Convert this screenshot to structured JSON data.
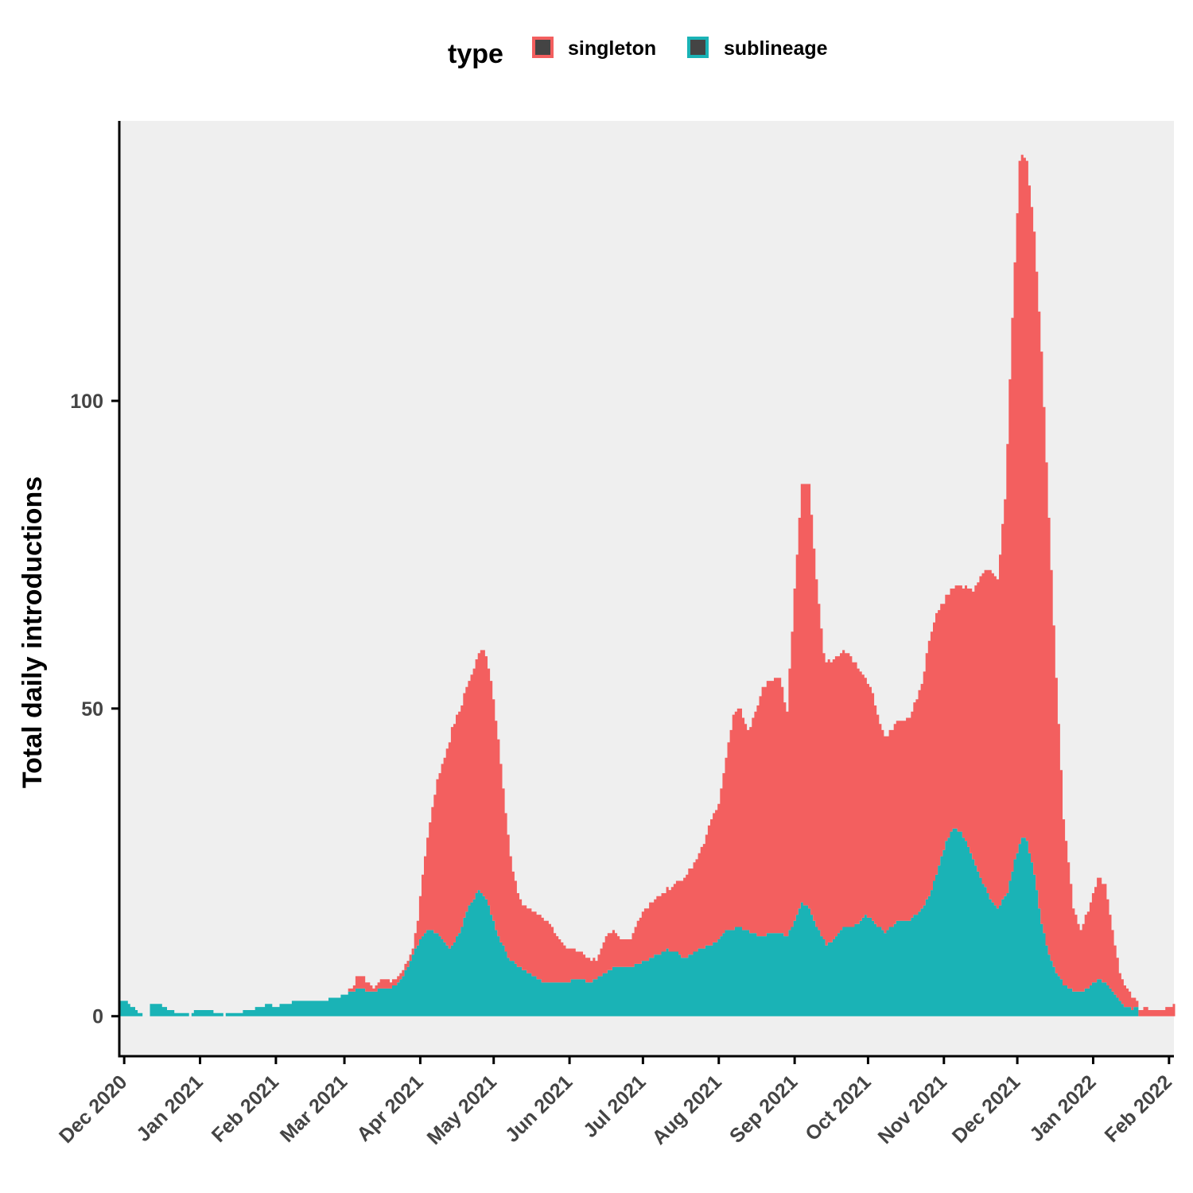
{
  "chart_data": {
    "type": "area",
    "stacked": true,
    "title": "",
    "xlabel": "",
    "ylabel": "Total daily introductions",
    "xlim": [
      "2020-11-29",
      "2022-02-03"
    ],
    "ylim": [
      -6.5,
      145.5
    ],
    "y_ticks": [
      0,
      50,
      100
    ],
    "x_ticks": [
      {
        "date": "2020-12-01",
        "label": "Dec 2020"
      },
      {
        "date": "2021-01-01",
        "label": "Jan 2021"
      },
      {
        "date": "2021-02-01",
        "label": "Feb 2021"
      },
      {
        "date": "2021-03-01",
        "label": "Mar 2021"
      },
      {
        "date": "2021-04-01",
        "label": "Apr 2021"
      },
      {
        "date": "2021-05-01",
        "label": "May 2021"
      },
      {
        "date": "2021-06-01",
        "label": "Jun 2021"
      },
      {
        "date": "2021-07-01",
        "label": "Jul 2021"
      },
      {
        "date": "2021-08-01",
        "label": "Aug 2021"
      },
      {
        "date": "2021-09-01",
        "label": "Sep 2021"
      },
      {
        "date": "2021-10-01",
        "label": "Oct 2021"
      },
      {
        "date": "2021-11-01",
        "label": "Nov 2021"
      },
      {
        "date": "2021-12-01",
        "label": "Dec 2021"
      },
      {
        "date": "2022-01-01",
        "label": "Jan 2022"
      },
      {
        "date": "2022-02-01",
        "label": "Feb 2022"
      }
    ],
    "grid": false,
    "legend": {
      "title": "type",
      "position": "top"
    },
    "series": [
      {
        "name": "sublineage",
        "color": "#1AB3B6",
        "points": [
          [
            "2020-11-29",
            2.3
          ],
          [
            "2020-12-02",
            2.3
          ],
          [
            "2020-12-06",
            1.0
          ],
          [
            "2020-12-09",
            0.2
          ],
          [
            "2020-12-11",
            0.2
          ],
          [
            "2020-12-12",
            2.1
          ],
          [
            "2020-12-16",
            1.9
          ],
          [
            "2020-12-20",
            1.0
          ],
          [
            "2020-12-24",
            0.4
          ],
          [
            "2020-12-28",
            0.2
          ],
          [
            "2020-12-31",
            1.1
          ],
          [
            "2021-01-04",
            1.1
          ],
          [
            "2021-01-08",
            0.5
          ],
          [
            "2021-01-11",
            0.2
          ],
          [
            "2021-01-16",
            0.5
          ],
          [
            "2021-01-22",
            1.1
          ],
          [
            "2021-01-28",
            1.8
          ],
          [
            "2021-02-02",
            1.7
          ],
          [
            "2021-02-06",
            1.9
          ],
          [
            "2021-02-08",
            2.3
          ],
          [
            "2021-02-15",
            2.4
          ],
          [
            "2021-02-22",
            2.7
          ],
          [
            "2021-03-01",
            3.4
          ],
          [
            "2021-03-06",
            4.3
          ],
          [
            "2021-03-13",
            4.2
          ],
          [
            "2021-03-18",
            4.4
          ],
          [
            "2021-03-22",
            5.0
          ],
          [
            "2021-03-25",
            6.5
          ],
          [
            "2021-03-28",
            9.0
          ],
          [
            "2021-04-01",
            12.5
          ],
          [
            "2021-04-05",
            14.2
          ],
          [
            "2021-04-09",
            13.0
          ],
          [
            "2021-04-13",
            10.8
          ],
          [
            "2021-04-17",
            13.5
          ],
          [
            "2021-04-21",
            18.0
          ],
          [
            "2021-04-25",
            20.4
          ],
          [
            "2021-04-28",
            19.0
          ],
          [
            "2021-05-02",
            14.0
          ],
          [
            "2021-05-07",
            9.5
          ],
          [
            "2021-05-13",
            7.5
          ],
          [
            "2021-05-18",
            6.5
          ],
          [
            "2021-05-22",
            5.3
          ],
          [
            "2021-05-30",
            5.5
          ],
          [
            "2021-06-05",
            6.0
          ],
          [
            "2021-06-10",
            5.5
          ],
          [
            "2021-06-15",
            7.0
          ],
          [
            "2021-06-20",
            8.0
          ],
          [
            "2021-06-26",
            8.0
          ],
          [
            "2021-07-01",
            8.8
          ],
          [
            "2021-07-06",
            9.8
          ],
          [
            "2021-07-11",
            10.8
          ],
          [
            "2021-07-14",
            10.6
          ],
          [
            "2021-07-18",
            9.3
          ],
          [
            "2021-07-24",
            10.9
          ],
          [
            "2021-07-29",
            11.5
          ],
          [
            "2021-08-01",
            12.6
          ],
          [
            "2021-08-04",
            14.0
          ],
          [
            "2021-08-09",
            14.4
          ],
          [
            "2021-08-15",
            13.5
          ],
          [
            "2021-08-18",
            12.8
          ],
          [
            "2021-08-22",
            13.5
          ],
          [
            "2021-08-26",
            13.6
          ],
          [
            "2021-08-29",
            12.9
          ],
          [
            "2021-09-01",
            15.5
          ],
          [
            "2021-09-04",
            18.3
          ],
          [
            "2021-09-07",
            17.5
          ],
          [
            "2021-09-10",
            14.5
          ],
          [
            "2021-09-14",
            11.5
          ],
          [
            "2021-09-17",
            12.5
          ],
          [
            "2021-09-20",
            14.2
          ],
          [
            "2021-09-25",
            14.5
          ],
          [
            "2021-09-30",
            16.3
          ],
          [
            "2021-10-03",
            15.5
          ],
          [
            "2021-10-08",
            13.5
          ],
          [
            "2021-10-13",
            15.5
          ],
          [
            "2021-10-18",
            15.7
          ],
          [
            "2021-10-22",
            16.8
          ],
          [
            "2021-10-26",
            19.5
          ],
          [
            "2021-10-29",
            23.0
          ],
          [
            "2021-11-02",
            28.5
          ],
          [
            "2021-11-05",
            30.5
          ],
          [
            "2021-11-08",
            30.0
          ],
          [
            "2021-11-11",
            27.5
          ],
          [
            "2021-11-16",
            22.5
          ],
          [
            "2021-11-20",
            19.0
          ],
          [
            "2021-11-23",
            17.5
          ],
          [
            "2021-11-27",
            20.0
          ],
          [
            "2021-11-30",
            25.5
          ],
          [
            "2021-12-03",
            29.0
          ],
          [
            "2021-12-05",
            28.5
          ],
          [
            "2021-12-08",
            23.0
          ],
          [
            "2021-12-11",
            15.0
          ],
          [
            "2021-12-14",
            10.0
          ],
          [
            "2021-12-17",
            7.0
          ],
          [
            "2021-12-20",
            5.2
          ],
          [
            "2021-12-24",
            4.0
          ],
          [
            "2021-12-27",
            3.9
          ],
          [
            "2021-12-31",
            5.0
          ],
          [
            "2022-01-03",
            5.9
          ],
          [
            "2022-01-06",
            5.5
          ],
          [
            "2022-01-10",
            3.5
          ],
          [
            "2022-01-14",
            1.6
          ],
          [
            "2022-01-17",
            1.2
          ],
          [
            "2022-01-19",
            1.4
          ],
          [
            "2022-01-20",
            0.0
          ],
          [
            "2022-02-03",
            0.0
          ]
        ]
      },
      {
        "name": "singleton",
        "color": "#F35F5F",
        "points": [
          [
            "2020-11-29",
            0
          ],
          [
            "2021-03-01",
            0
          ],
          [
            "2021-03-04",
            0.4
          ],
          [
            "2021-03-06",
            1.8
          ],
          [
            "2021-03-09",
            1.8
          ],
          [
            "2021-03-13",
            0.7
          ],
          [
            "2021-03-16",
            1.5
          ],
          [
            "2021-03-21",
            1.1
          ],
          [
            "2021-03-25",
            0.8
          ],
          [
            "2021-03-29",
            1.0
          ],
          [
            "2021-03-31",
            4.0
          ],
          [
            "2021-04-02",
            10.0
          ],
          [
            "2021-04-05",
            17.5
          ],
          [
            "2021-04-08",
            25.0
          ],
          [
            "2021-04-11",
            30.0
          ],
          [
            "2021-04-14",
            35.5
          ],
          [
            "2021-04-17",
            36.0
          ],
          [
            "2021-04-21",
            36.5
          ],
          [
            "2021-04-24",
            38.0
          ],
          [
            "2021-04-27",
            40.0
          ],
          [
            "2021-04-30",
            38.0
          ],
          [
            "2021-05-03",
            32.0
          ],
          [
            "2021-05-06",
            22.5
          ],
          [
            "2021-05-09",
            14.5
          ],
          [
            "2021-05-12",
            10.8
          ],
          [
            "2021-05-15",
            10.5
          ],
          [
            "2021-05-19",
            10.5
          ],
          [
            "2021-05-23",
            10.0
          ],
          [
            "2021-05-27",
            7.5
          ],
          [
            "2021-05-31",
            5.5
          ],
          [
            "2021-06-04",
            4.7
          ],
          [
            "2021-06-09",
            3.8
          ],
          [
            "2021-06-12",
            3.0
          ],
          [
            "2021-06-16",
            5.8
          ],
          [
            "2021-06-19",
            6.0
          ],
          [
            "2021-06-22",
            4.7
          ],
          [
            "2021-06-26",
            4.5
          ],
          [
            "2021-06-30",
            7.5
          ],
          [
            "2021-07-04",
            9.0
          ],
          [
            "2021-07-07",
            9.3
          ],
          [
            "2021-07-10",
            9.5
          ],
          [
            "2021-07-13",
            10.5
          ],
          [
            "2021-07-17",
            12.5
          ],
          [
            "2021-07-20",
            13.8
          ],
          [
            "2021-07-23",
            15.0
          ],
          [
            "2021-07-26",
            17.0
          ],
          [
            "2021-07-29",
            20.5
          ],
          [
            "2021-08-01",
            22.0
          ],
          [
            "2021-08-04",
            28.0
          ],
          [
            "2021-08-07",
            35.0
          ],
          [
            "2021-08-10",
            35.5
          ],
          [
            "2021-08-13",
            32.5
          ],
          [
            "2021-08-16",
            36.0
          ],
          [
            "2021-08-19",
            40.5
          ],
          [
            "2021-08-22",
            41.0
          ],
          [
            "2021-08-26",
            41.5
          ],
          [
            "2021-08-29",
            36.5
          ],
          [
            "2021-09-01",
            54.0
          ],
          [
            "2021-09-04",
            68.0
          ],
          [
            "2021-09-07",
            69.0
          ],
          [
            "2021-09-10",
            56.5
          ],
          [
            "2021-09-13",
            46.5
          ],
          [
            "2021-09-16",
            45.5
          ],
          [
            "2021-09-20",
            45.0
          ],
          [
            "2021-09-23",
            44.5
          ],
          [
            "2021-09-26",
            42.5
          ],
          [
            "2021-09-30",
            38.5
          ],
          [
            "2021-10-03",
            37.0
          ],
          [
            "2021-10-06",
            33.0
          ],
          [
            "2021-10-09",
            31.5
          ],
          [
            "2021-10-13",
            32.5
          ],
          [
            "2021-10-16",
            32.5
          ],
          [
            "2021-10-19",
            33.5
          ],
          [
            "2021-10-23",
            36.5
          ],
          [
            "2021-10-26",
            41.5
          ],
          [
            "2021-10-29",
            42.5
          ],
          [
            "2021-11-01",
            40.0
          ],
          [
            "2021-11-05",
            39.0
          ],
          [
            "2021-11-09",
            40.5
          ],
          [
            "2021-11-13",
            43.5
          ],
          [
            "2021-11-17",
            50.5
          ],
          [
            "2021-11-20",
            53.5
          ],
          [
            "2021-11-23",
            53.5
          ],
          [
            "2021-11-26",
            64.5
          ],
          [
            "2021-11-29",
            90.0
          ],
          [
            "2021-12-02",
            111.0
          ],
          [
            "2021-12-05",
            110.5
          ],
          [
            "2021-12-08",
            104.5
          ],
          [
            "2021-12-11",
            93.0
          ],
          [
            "2021-12-14",
            71.0
          ],
          [
            "2021-12-17",
            48.0
          ],
          [
            "2021-12-20",
            27.0
          ],
          [
            "2021-12-24",
            13.5
          ],
          [
            "2021-12-27",
            10.0
          ],
          [
            "2021-12-31",
            13.5
          ],
          [
            "2022-01-03",
            16.5
          ],
          [
            "2022-01-06",
            16.0
          ],
          [
            "2022-01-09",
            10.0
          ],
          [
            "2022-01-12",
            4.7
          ],
          [
            "2022-01-15",
            2.8
          ],
          [
            "2022-01-18",
            1.5
          ],
          [
            "2022-01-19",
            0.8
          ],
          [
            "2022-01-22",
            1.4
          ],
          [
            "2022-01-26",
            1.0
          ],
          [
            "2022-01-29",
            1.1
          ],
          [
            "2022-02-01",
            1.5
          ],
          [
            "2022-02-03",
            1.8
          ]
        ]
      }
    ]
  },
  "legend": {
    "title": "type",
    "items": [
      {
        "label": "singleton",
        "color": "#F35F5F"
      },
      {
        "label": "sublineage",
        "color": "#1AB3B6"
      }
    ]
  }
}
